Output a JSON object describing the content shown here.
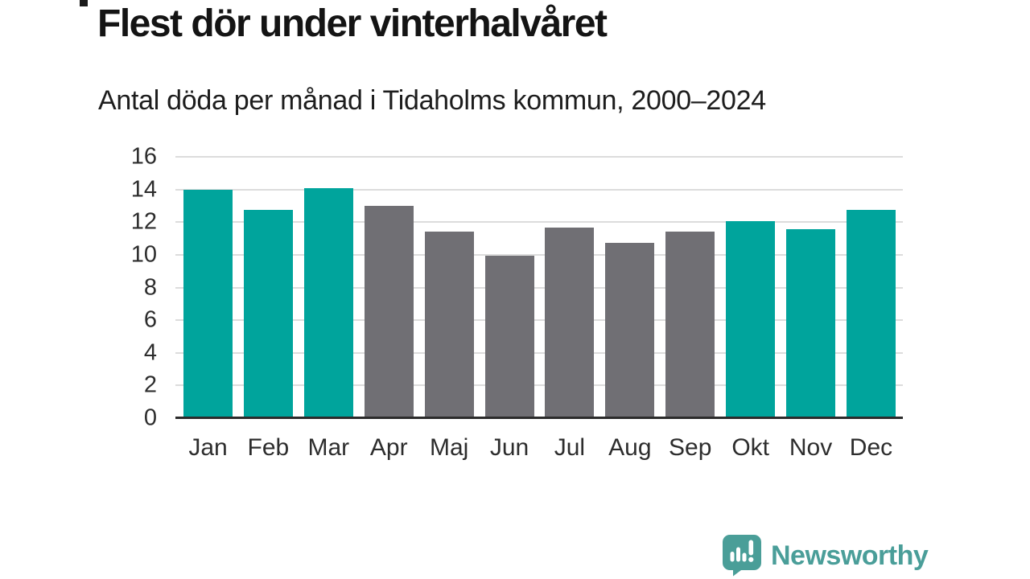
{
  "header": {
    "title": "Flest dör under vinterhalvåret",
    "subtitle": "Antal döda per månad i Tidaholms kommun, 2000–2024"
  },
  "chart_data": {
    "type": "bar",
    "title": "Flest dör under vinterhalvåret",
    "subtitle": "Antal döda per månad i Tidaholms kommun, 2000–2024",
    "categories": [
      "Jan",
      "Feb",
      "Mar",
      "Apr",
      "Maj",
      "Jun",
      "Jul",
      "Aug",
      "Sep",
      "Okt",
      "Nov",
      "Dec"
    ],
    "values": [
      14.0,
      12.75,
      14.1,
      13.0,
      11.4,
      9.95,
      11.65,
      10.75,
      11.4,
      12.05,
      11.55,
      12.75
    ],
    "bar_colors": [
      "#00a49c",
      "#00a49c",
      "#00a49c",
      "#706f74",
      "#706f74",
      "#706f74",
      "#706f74",
      "#706f74",
      "#706f74",
      "#00a49c",
      "#00a49c",
      "#00a49c"
    ],
    "highlight_color": "#00a49c",
    "default_color": "#706f74",
    "xlabel": "",
    "ylabel": "",
    "ylim": [
      0,
      16
    ],
    "yticks": [
      0,
      2,
      4,
      6,
      8,
      10,
      12,
      14,
      16
    ],
    "grid": true,
    "gridline_color": "#dcdcdc",
    "axis_color": "#2b2b2b",
    "legend": "none"
  },
  "footer": {
    "brand": "Newsworthy",
    "brand_color": "#4a9e99",
    "brand_icon": "chart-speech-bubble-icon"
  }
}
